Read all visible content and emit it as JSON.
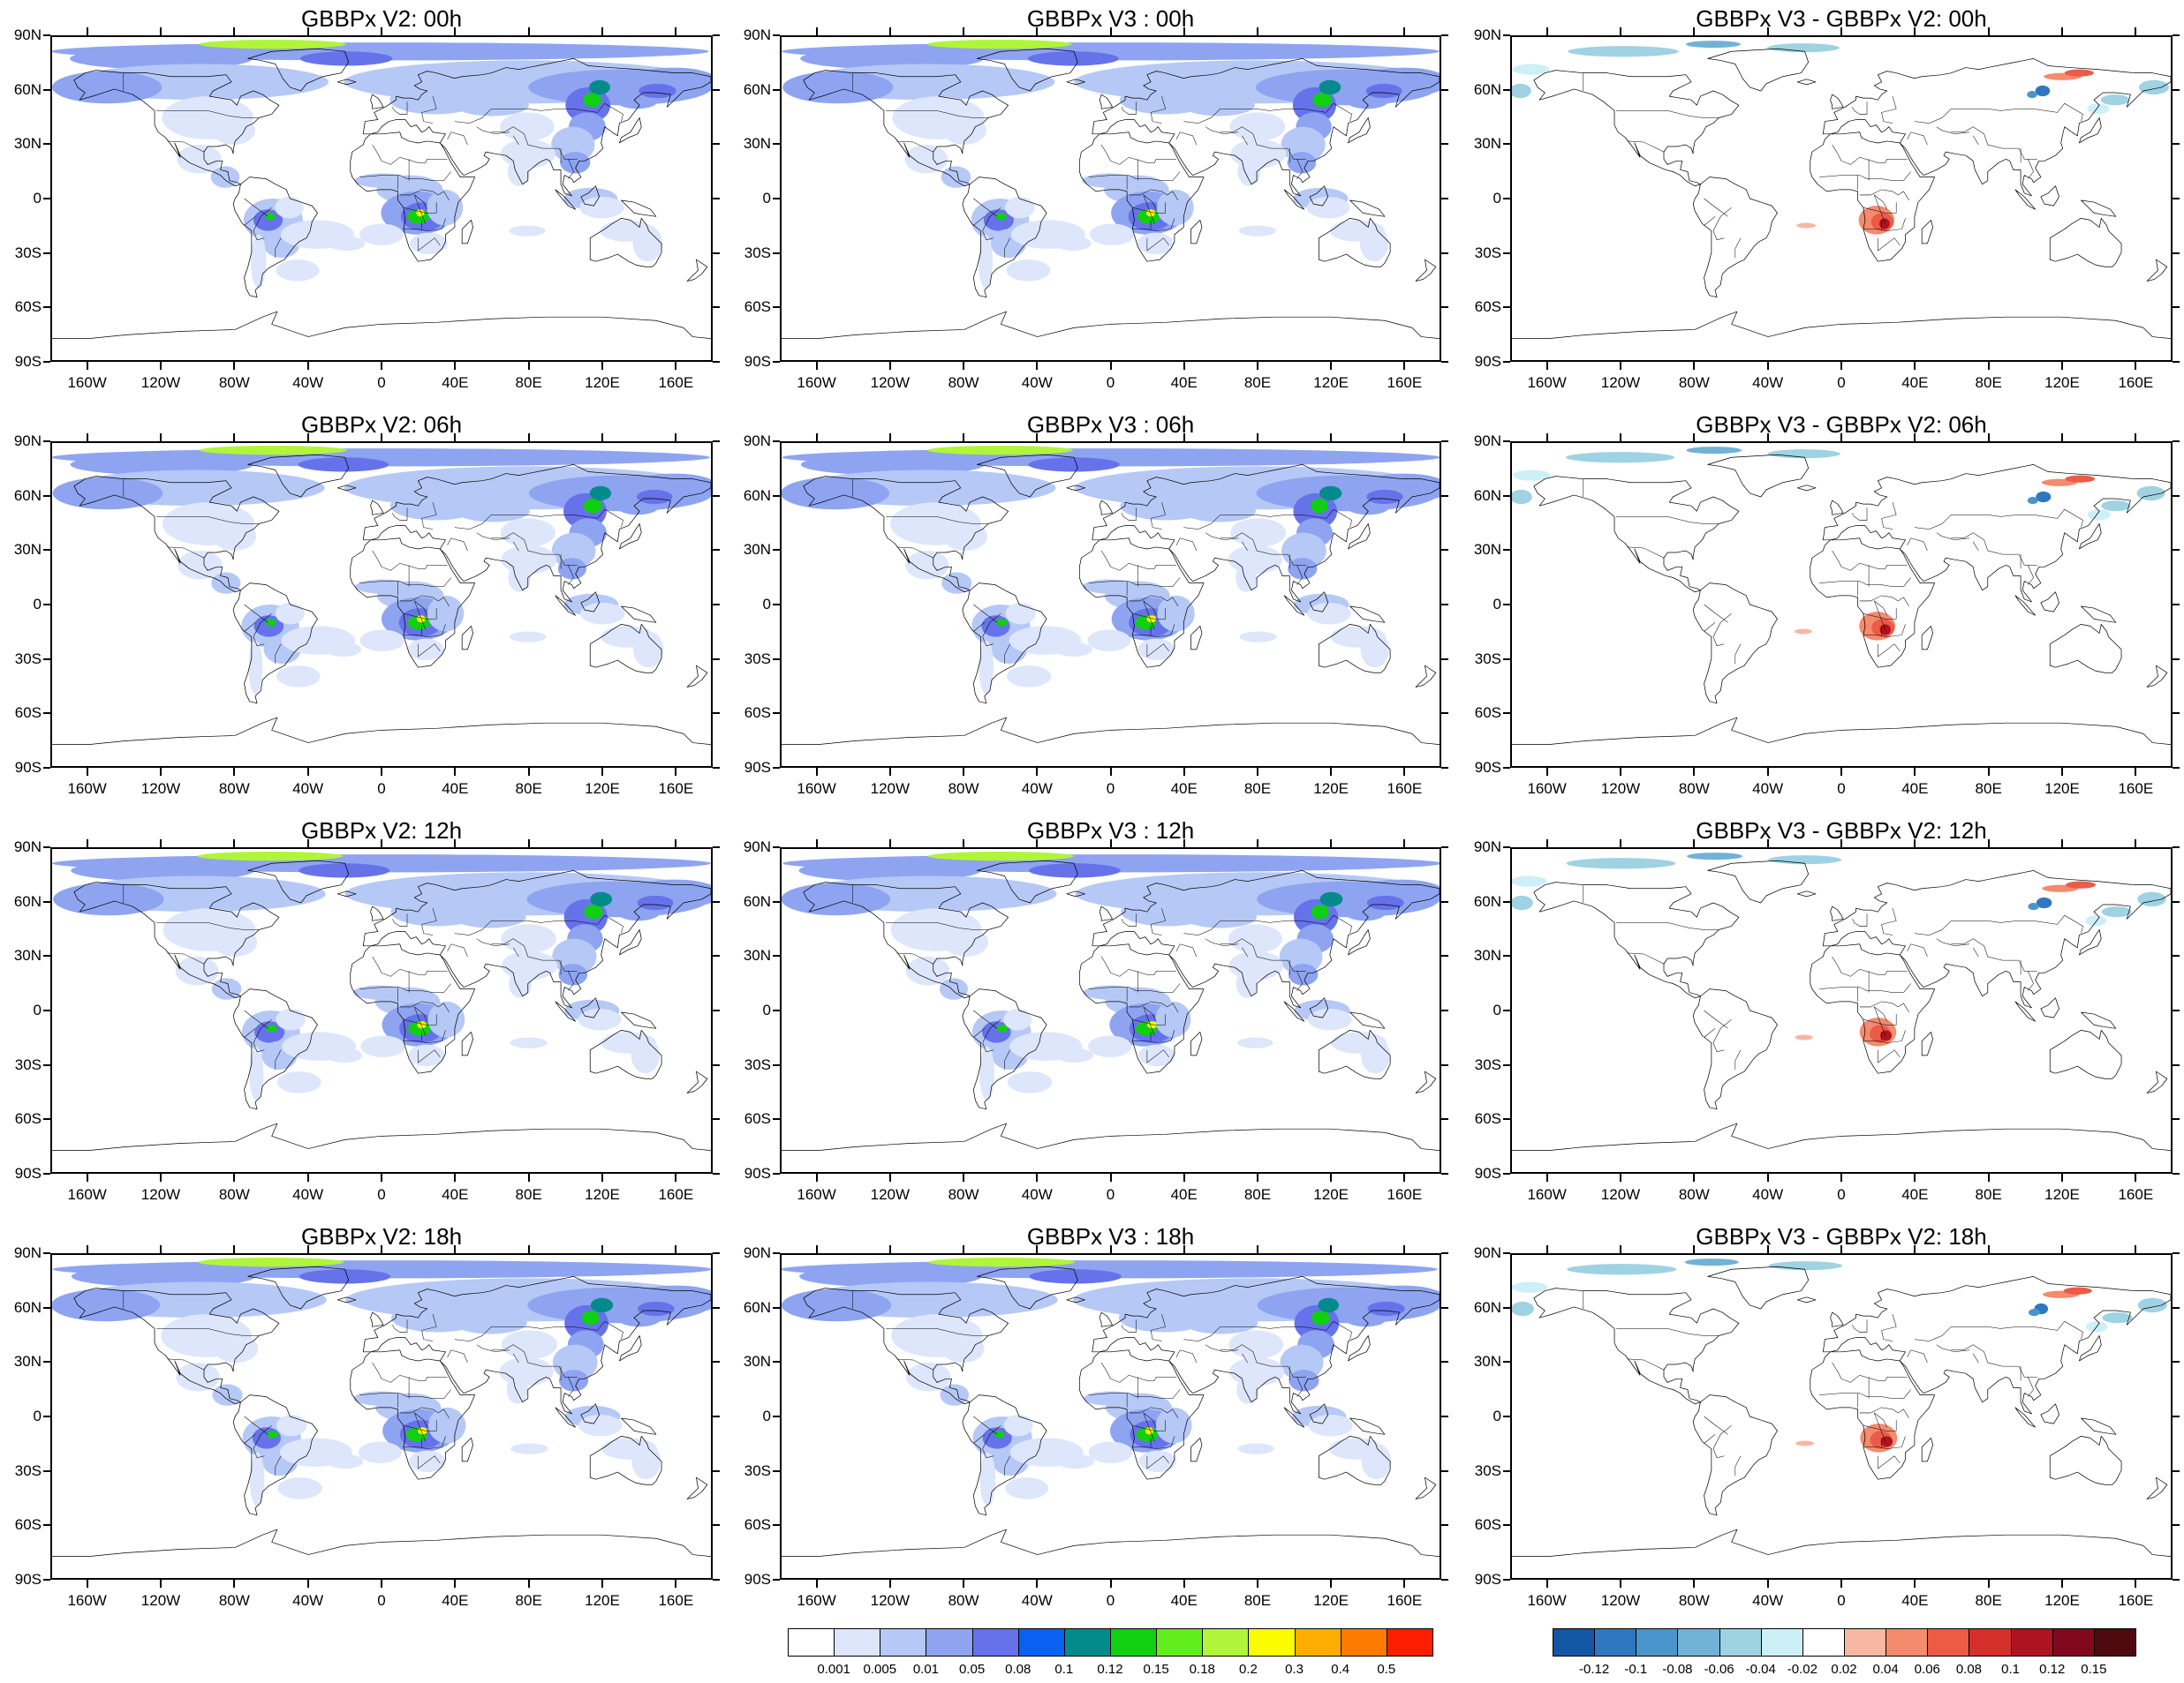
{
  "panels": [
    {
      "title": "GBBPx V2: 00h",
      "kind": "abs",
      "row": 0,
      "col": 0
    },
    {
      "title": "GBBPx V3 : 00h",
      "kind": "abs",
      "row": 0,
      "col": 1
    },
    {
      "title": "GBBPx V3 - GBBPx V2: 00h",
      "kind": "diff",
      "row": 0,
      "col": 2
    },
    {
      "title": "GBBPx V2: 06h",
      "kind": "abs",
      "row": 1,
      "col": 0
    },
    {
      "title": "GBBPx V3 : 06h",
      "kind": "abs",
      "row": 1,
      "col": 1
    },
    {
      "title": "GBBPx V3 - GBBPx V2: 06h",
      "kind": "diff",
      "row": 1,
      "col": 2
    },
    {
      "title": "GBBPx V2: 12h",
      "kind": "abs",
      "row": 2,
      "col": 0
    },
    {
      "title": "GBBPx V3 : 12h",
      "kind": "abs",
      "row": 2,
      "col": 1
    },
    {
      "title": "GBBPx V3 - GBBPx V2: 12h",
      "kind": "diff",
      "row": 2,
      "col": 2
    },
    {
      "title": "GBBPx V2: 18h",
      "kind": "abs",
      "row": 3,
      "col": 0
    },
    {
      "title": "GBBPx V3 : 18h",
      "kind": "abs",
      "row": 3,
      "col": 1
    },
    {
      "title": "GBBPx V3 - GBBPx V2: 18h",
      "kind": "diff",
      "row": 3,
      "col": 2
    }
  ],
  "lat_labels": [
    "90N",
    "60N",
    "30N",
    "0",
    "30S",
    "60S",
    "90S"
  ],
  "lon_labels": [
    "160W",
    "120W",
    "80W",
    "40W",
    "0",
    "40E",
    "80E",
    "120E",
    "160E"
  ],
  "abs_legend": {
    "labels": [
      "0.001",
      "0.005",
      "0.01",
      "0.05",
      "0.08",
      "0.1",
      "0.12",
      "0.15",
      "0.18",
      "0.2",
      "0.3",
      "0.4",
      "0.5"
    ],
    "colors": [
      "#ffffff",
      "#dde6fb",
      "#b6c8f6",
      "#8ea4f1",
      "#6672ea",
      "#0a62f2",
      "#038b8b",
      "#11cf11",
      "#62ee1c",
      "#b0f53a",
      "#fcfc00",
      "#fcad00",
      "#fc7b00",
      "#fb1e00"
    ]
  },
  "diff_legend": {
    "labels": [
      "-0.12",
      "-0.1",
      "-0.08",
      "-0.06",
      "-0.04",
      "-0.02",
      "0.02",
      "0.04",
      "0.06",
      "0.08",
      "0.1",
      "0.12",
      "0.15"
    ],
    "colors": [
      "#1356a5",
      "#2f78c0",
      "#4a95cb",
      "#71b2d6",
      "#9fd2e2",
      "#cdeff6",
      "#ffffff",
      "#f8b7a2",
      "#f48a6e",
      "#eb5b46",
      "#d52f2b",
      "#ad1420",
      "#80091d",
      "#4e0a0e"
    ]
  }
}
